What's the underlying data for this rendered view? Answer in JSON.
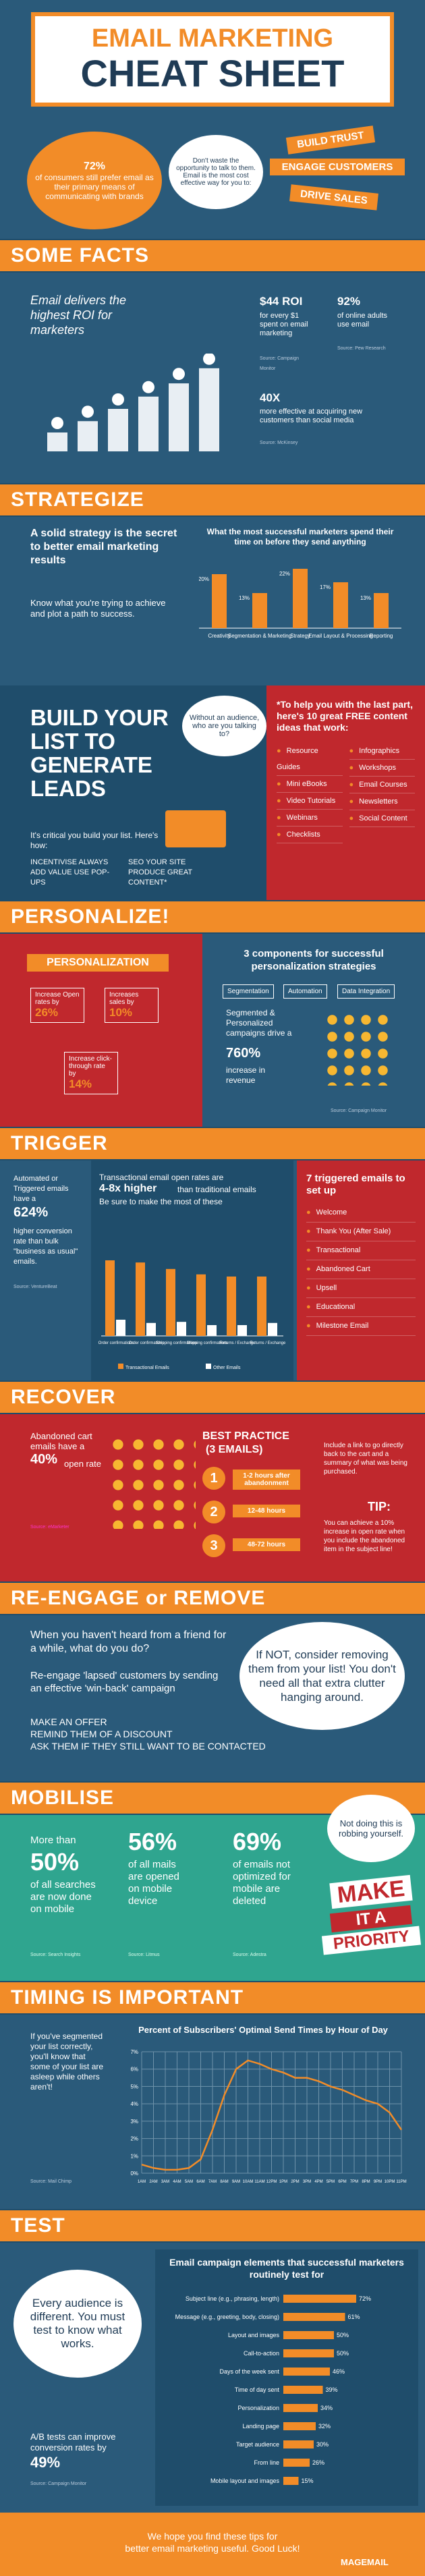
{
  "header": {
    "title_line1": "EMAIL MARKETING",
    "title_line2": "CHEAT SHEET",
    "stat_pct": "72%",
    "stat_text": "of consumers still prefer email as their primary means of communicating with brands",
    "bubble_text": "Don't waste the opportunity to talk to them. Email is the most cost effective way for you to:",
    "tags": [
      "BUILD TRUST",
      "ENGAGE CUSTOMERS",
      "DRIVE SALES"
    ]
  },
  "facts": {
    "heading": "SOME FACTS",
    "intro": "Email delivers the highest ROI for marketers",
    "roi": "$44 ROI",
    "roi_text": "for every $1 spent on email marketing",
    "roi_src": "Source: Campaign Monitor",
    "pct92": "92%",
    "pct92_text": "of online adults use email",
    "pct92_src": "Source: Pew Research",
    "x40": "40X",
    "x40_text": "more effective at acquiring new customers than social media",
    "x40_src": "Source: McKinsey",
    "bar_heights": [
      0.2,
      0.32,
      0.45,
      0.58,
      0.72,
      0.88
    ]
  },
  "strategize": {
    "heading": "STRATEGIZE",
    "left_bold": "A solid strategy is the secret to better email marketing results",
    "left_text": "Know what you're trying to achieve and plot a path to success.",
    "chart_title": "What the most successful marketers spend their time on before they send anything"
  },
  "chart_data": [
    {
      "type": "bar",
      "title": "What the most successful marketers spend their time on before they send anything",
      "categories": [
        "Creativity",
        "Segmentation & Marketing",
        "Strategy",
        "Email Layout & Processing",
        "Reporting"
      ],
      "values": [
        20,
        13,
        22,
        17,
        13
      ],
      "ylim": [
        0,
        25
      ]
    },
    {
      "type": "bar",
      "title": "Transactional email open rates are 4-8x higher than traditional emails",
      "categories": [
        "Order confirmations",
        "Order confirmations",
        "Shipping confirmations",
        "Shipping confirmations",
        "Returns / Exchange",
        "Returns / Exchange"
      ],
      "series": [
        {
          "name": "Transactional Emails",
          "values": [
            70,
            68,
            62,
            57,
            55,
            55
          ]
        },
        {
          "name": "Other Emails",
          "values": [
            15,
            12,
            13,
            10,
            10,
            12
          ]
        }
      ],
      "ylim": [
        0,
        100
      ]
    },
    {
      "type": "line",
      "title": "Percent of Subscribers' Optimal Send Times by Hour of Day",
      "x": [
        "1AM",
        "2AM",
        "3AM",
        "4AM",
        "5AM",
        "6AM",
        "7AM",
        "8AM",
        "9AM",
        "10AM",
        "11AM",
        "12PM",
        "1PM",
        "2PM",
        "3PM",
        "4PM",
        "5PM",
        "6PM",
        "7PM",
        "8PM",
        "9PM",
        "10PM",
        "11PM"
      ],
      "values": [
        0.5,
        0.3,
        0.2,
        0.2,
        0.3,
        0.8,
        2.5,
        4.5,
        6.0,
        6.5,
        6.3,
        6.0,
        5.8,
        5.5,
        5.5,
        5.3,
        5.0,
        4.8,
        4.5,
        4.2,
        4.0,
        3.5,
        2.5
      ],
      "ylim": [
        0,
        7
      ],
      "yticks": [
        "0%",
        "1%",
        "2%",
        "3%",
        "4%",
        "5%",
        "6%",
        "7%"
      ]
    },
    {
      "type": "bar",
      "title": "Email campaign elements that successful marketers routinely test for",
      "categories": [
        "Subject line (e.g., phrasing, length)",
        "Message (e.g., greeting, body, closing)",
        "Layout and images",
        "Call-to-action",
        "Days of the week sent",
        "Time of day sent",
        "Personalization",
        "Landing page",
        "Target audience",
        "From line",
        "Mobile layout and images"
      ],
      "values": [
        72,
        61,
        50,
        50,
        46,
        39,
        34,
        32,
        30,
        26,
        15
      ]
    }
  ],
  "build": {
    "heading": "BUILD YOUR LIST TO GENERATE LEADS",
    "text": "It's critical you build your list. Here's how:",
    "tip1": "INCENTIVISE ALWAYS ADD VALUE USE POP-UPS",
    "tip2": "SEO YOUR SITE PRODUCE GREAT CONTENT*",
    "bubble": "Without an audience, who are you talking to?",
    "right_title": "*To help you with the last part, here's 10 great FREE content ideas that work:",
    "ideas": [
      "Resource Guides",
      "Infographics",
      "Mini eBooks",
      "Workshops",
      "Video Tutorials",
      "Email Courses",
      "Webinars",
      "Newsletters",
      "Checklists",
      "Social Content"
    ]
  },
  "personalize": {
    "heading": "PERSONALIZE!",
    "label": "PERSONALIZATION",
    "b1": "Increase Open rates by",
    "b1v": "26%",
    "b2": "Increases sales by",
    "b2v": "10%",
    "b3": "Increase click-through rate by",
    "b3v": "14%",
    "right_title": "3 components for successful personalization strategies",
    "comps": [
      "Segmentation",
      "Automation",
      "Data Integration"
    ],
    "rev_text": "Segmented & Personalized campaigns drive a",
    "rev_v": "760%",
    "rev_suffix": "increase in revenue",
    "src": "Source: Campaign Monitor"
  },
  "trigger": {
    "heading": "TRIGGER",
    "left": "Automated or Triggered emails have a",
    "left_v": "624%",
    "left_2": "higher conversion rate than bulk \"business as usual\" emails.",
    "src": "Source: VentureBeat",
    "chart_line1": "Transactional email open rates are",
    "chart_hl": "4-8x higher",
    "chart_line2": "than traditional emails",
    "chart_line3": "Be sure to make the most of these",
    "legend": [
      "Transactional Emails",
      "Other Emails"
    ],
    "right_title": "7 triggered emails to set up",
    "emails": [
      "Welcome",
      "Thank You (After Sale)",
      "Transactional",
      "Abandoned Cart",
      "Upsell",
      "Educational",
      "Milestone Email"
    ]
  },
  "recover": {
    "heading": "RECOVER",
    "left": "Abandoned cart emails have a",
    "left_v": "40%",
    "left_2": "open rate",
    "src": "Source: eMarketer",
    "bp_title": "BEST PRACTICE",
    "bp_sub": "(3 EMAILS)",
    "steps": [
      "1-2 hours after abandonment",
      "12-48 hours",
      "48-72 hours"
    ],
    "include": "Include a link to go directly back to the cart and a summary of what was being purchased.",
    "tip": "TIP:",
    "tip_text": "You can achieve a 10% increase in open rate when you include the abandoned item in the subject line!"
  },
  "reengage": {
    "heading": "RE-ENGAGE or REMOVE",
    "q": "When you haven't heard from a friend for a while, what do you do?",
    "t1": "Re-engage 'lapsed' customers by sending an effective 'win-back' campaign",
    "t2": "MAKE AN OFFER",
    "t3": "REMIND THEM OF A DISCOUNT",
    "t4": "ASK THEM IF THEY STILL WANT TO BE CONTACTED",
    "bubble": "If NOT, consider removing them from your list! You don't need all that extra clutter hanging around."
  },
  "mobilise": {
    "heading": "MOBILISE",
    "s1v": "50%",
    "s1": "of all searches are now done on mobile",
    "s1_pre": "More than",
    "s2v": "56%",
    "s2": "of all mails are opened on mobile device",
    "s3v": "69%",
    "s3": "of emails not optimized for mobile are deleted",
    "src1": "Source: Search Insights",
    "src2": "Source: Litmus",
    "src3": "Source: Adestra",
    "bubble": "Not doing this is robbing yourself.",
    "make": "MAKE",
    "it": "IT A",
    "priority": "PRIORITY"
  },
  "timing": {
    "heading": "TIMING IS IMPORTANT",
    "left": "If you've segmented your list correctly, you'll know that some of your list are asleep while others aren't!",
    "src": "Source: Mail Chimp",
    "chart_title": "Percent of Subscribers' Optimal Send Times by Hour of Day"
  },
  "test": {
    "heading": "TEST",
    "bubble": "Every audience is different. You must test to know what works.",
    "left": "A/B tests can improve conversion rates by",
    "left_v": "49%",
    "src": "Source: Campaign Monitor",
    "right_title": "Email campaign elements that successful marketers routinely test for",
    "pcts": [
      "72%",
      "61%",
      "50%",
      "50%",
      "46%",
      "39%",
      "34%",
      "32%",
      "30%",
      "26%",
      "15%"
    ]
  },
  "footer": {
    "text1": "We hope you find these tips for",
    "text2": "better email marketing useful. Good Luck!",
    "brand": "MAGEMAIL"
  }
}
